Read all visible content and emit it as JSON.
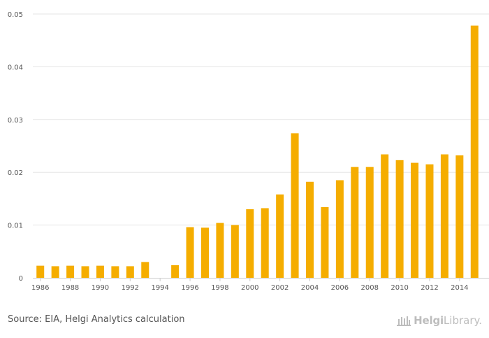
{
  "chart_data": {
    "type": "bar",
    "title": "",
    "xlabel": "",
    "ylabel": "",
    "categories": [
      "1986",
      "1987",
      "1988",
      "1989",
      "1990",
      "1991",
      "1992",
      "1993",
      "1994",
      "1995",
      "1996",
      "1997",
      "1998",
      "1999",
      "2000",
      "2001",
      "2002",
      "2003",
      "2004",
      "2005",
      "2006",
      "2007",
      "2008",
      "2009",
      "2010",
      "2011",
      "2012",
      "2013",
      "2014",
      "2015"
    ],
    "x_tick_labels": [
      "1986",
      "",
      "1988",
      "",
      "1990",
      "",
      "1992",
      "",
      "1994",
      "",
      "1996",
      "",
      "1998",
      "",
      "2000",
      "",
      "2002",
      "",
      "2004",
      "",
      "2006",
      "",
      "2008",
      "",
      "2010",
      "",
      "2012",
      "",
      "2014",
      ""
    ],
    "values": [
      0.0023,
      0.0022,
      0.0023,
      0.0022,
      0.0023,
      0.0022,
      0.0022,
      0.003,
      0,
      0.0024,
      0.0096,
      0.0095,
      0.0104,
      0.01,
      0.013,
      0.0132,
      0.0158,
      0.0274,
      0.0182,
      0.0134,
      0.0185,
      0.021,
      0.021,
      0.0234,
      0.0223,
      0.0218,
      0.0215,
      0.0234,
      0.0232,
      0.0478
    ],
    "ylim": [
      0,
      0.05
    ],
    "y_ticks": [
      0,
      0.01,
      0.02,
      0.03,
      0.04,
      0.05
    ],
    "y_tick_labels": [
      "0",
      "0.01",
      "0.02",
      "0.03",
      "0.04",
      "0.05"
    ],
    "grid": true,
    "bar_color": "#f5ad00",
    "grid_color": "#e6e6e6",
    "axis_color": "#cccccc",
    "tick_label_color": "#555555"
  },
  "footer": {
    "source": "Source: EIA, Helgi Analytics calculation",
    "brand_name": "Helgi",
    "brand_suffix": "Library.",
    "logo_icon": "helgi-building-icon"
  }
}
